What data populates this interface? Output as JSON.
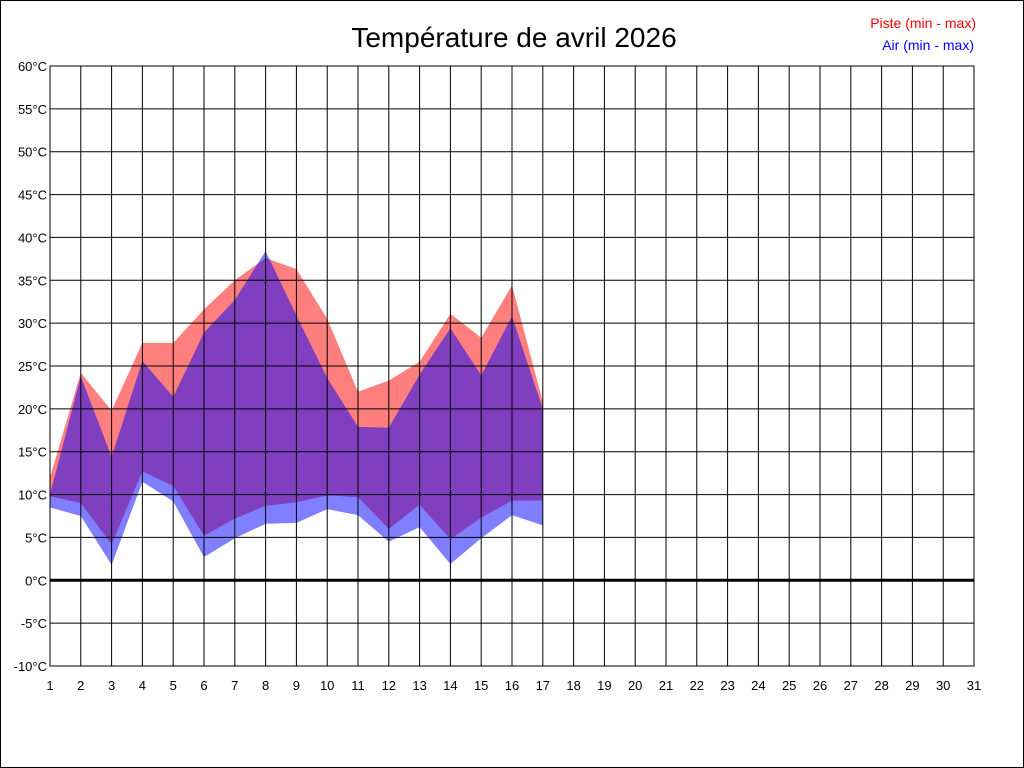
{
  "chart_data": {
    "type": "area",
    "title": "Température de avril 2026",
    "xlabel": "",
    "ylabel": "",
    "unit": "°C",
    "xlim": [
      1,
      31
    ],
    "ylim": [
      -10,
      60
    ],
    "y_step": 5,
    "grid": true,
    "legend_position": "top-right",
    "x_ticks": [
      "1",
      "2",
      "3",
      "4",
      "5",
      "6",
      "7",
      "8",
      "9",
      "10",
      "11",
      "12",
      "13",
      "14",
      "15",
      "16",
      "17",
      "18",
      "19",
      "20",
      "21",
      "22",
      "23",
      "24",
      "25",
      "26",
      "27",
      "28",
      "29",
      "30",
      "31"
    ],
    "y_ticks": [
      "60°C",
      "55°C",
      "50°C",
      "45°C",
      "40°C",
      "35°C",
      "30°C",
      "25°C",
      "20°C",
      "15°C",
      "10°C",
      "5°C",
      "0°C",
      "-5°C",
      "-10°C"
    ],
    "x": [
      1,
      2,
      3,
      4,
      5,
      6,
      7,
      8,
      9,
      10,
      11,
      12,
      13,
      14,
      15,
      16,
      17
    ],
    "series": [
      {
        "name": "Piste (min - max)",
        "color": "#ff0000",
        "fill": "rgba(255,0,0,0.5)",
        "min": [
          9.8,
          9.0,
          4.2,
          12.7,
          11.0,
          5.2,
          7.2,
          8.7,
          9.1,
          9.9,
          9.7,
          6.0,
          8.8,
          4.8,
          7.3,
          9.3,
          9.3
        ],
        "max": [
          12.0,
          24.2,
          19.8,
          27.7,
          27.7,
          31.6,
          35.0,
          37.6,
          36.3,
          30.5,
          22.0,
          23.3,
          25.5,
          31.1,
          28.3,
          34.4,
          20.8
        ]
      },
      {
        "name": "Air (min - max)",
        "color": "#0000ff",
        "fill": "rgba(0,0,255,0.5)",
        "min": [
          8.5,
          7.5,
          1.8,
          11.5,
          9.2,
          2.7,
          4.9,
          6.6,
          6.7,
          8.3,
          7.6,
          4.5,
          6.2,
          1.9,
          4.9,
          7.6,
          6.4
        ],
        "max": [
          10.0,
          23.8,
          14.4,
          25.6,
          21.4,
          28.9,
          32.7,
          38.4,
          30.9,
          23.6,
          17.9,
          17.8,
          24.0,
          29.4,
          23.9,
          30.8,
          20.0
        ]
      }
    ]
  }
}
